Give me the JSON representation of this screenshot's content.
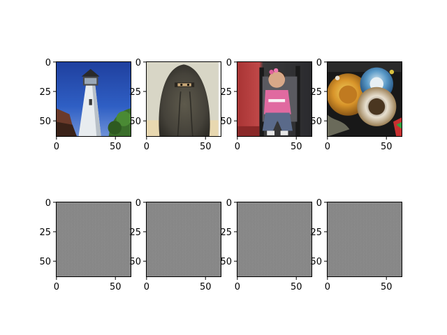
{
  "figure": {
    "background": "#ffffff",
    "axes_color": "#000000",
    "gray_fill": "#888888"
  },
  "chart_data": [
    {
      "type": "image",
      "row": 0,
      "col": 0,
      "depicts": "white lighthouse tower against deep blue sky with green foliage",
      "palette": [
        "#2a54b8",
        "#e8ecef",
        "#3a6e2a",
        "#6b3a2a"
      ],
      "xlim": [
        0,
        63
      ],
      "ylim": [
        63,
        0
      ],
      "xticks": [
        "0",
        "50"
      ],
      "yticks": [
        "0",
        "25",
        "50"
      ]
    },
    {
      "type": "image",
      "row": 0,
      "col": 1,
      "depicts": "person in dark niqab with eyes visible, pale background",
      "palette": [
        "#3d3a30",
        "#5a5648",
        "#d8d8c8",
        "#e8d8b0"
      ],
      "xlim": [
        0,
        63
      ],
      "ylim": [
        63,
        0
      ],
      "xticks": [
        "0",
        "50"
      ],
      "yticks": [
        "0",
        "25",
        "50"
      ]
    },
    {
      "type": "image",
      "row": 0,
      "col": 2,
      "depicts": "young girl in pink shirt with flowers in hair sitting in stroller",
      "palette": [
        "#b03a3a",
        "#e06aa0",
        "#5a6a8a",
        "#2a2a2a"
      ],
      "xlim": [
        0,
        63
      ],
      "ylim": [
        63,
        0
      ],
      "xticks": [
        "0",
        "50"
      ],
      "yticks": [
        "0",
        "25",
        "50"
      ]
    },
    {
      "type": "image",
      "row": 0,
      "col": 3,
      "depicts": "colorful decorated sombrero hats on dark background",
      "palette": [
        "#d89a2a",
        "#3a8ab8",
        "#e8e0d0",
        "#1a1a1a"
      ],
      "xlim": [
        0,
        63
      ],
      "ylim": [
        63,
        0
      ],
      "xticks": [
        "0",
        "50"
      ],
      "yticks": [
        "0",
        "25",
        "50"
      ]
    },
    {
      "type": "image",
      "row": 1,
      "col": 0,
      "depicts": "uniform gray noise",
      "palette": [
        "#888888"
      ],
      "xlim": [
        0,
        63
      ],
      "ylim": [
        63,
        0
      ],
      "xticks": [
        "0",
        "50"
      ],
      "yticks": [
        "0",
        "25",
        "50"
      ]
    },
    {
      "type": "image",
      "row": 1,
      "col": 1,
      "depicts": "uniform gray noise",
      "palette": [
        "#888888"
      ],
      "xlim": [
        0,
        63
      ],
      "ylim": [
        63,
        0
      ],
      "xticks": [
        "0",
        "50"
      ],
      "yticks": [
        "0",
        "25",
        "50"
      ]
    },
    {
      "type": "image",
      "row": 1,
      "col": 2,
      "depicts": "uniform gray noise",
      "palette": [
        "#888888"
      ],
      "xlim": [
        0,
        63
      ],
      "ylim": [
        63,
        0
      ],
      "xticks": [
        "0",
        "50"
      ],
      "yticks": [
        "0",
        "25",
        "50"
      ]
    },
    {
      "type": "image",
      "row": 1,
      "col": 3,
      "depicts": "uniform gray noise",
      "palette": [
        "#888888"
      ],
      "xlim": [
        0,
        63
      ],
      "ylim": [
        63,
        0
      ],
      "xticks": [
        "0",
        "50"
      ],
      "yticks": [
        "0",
        "25",
        "50"
      ]
    }
  ]
}
